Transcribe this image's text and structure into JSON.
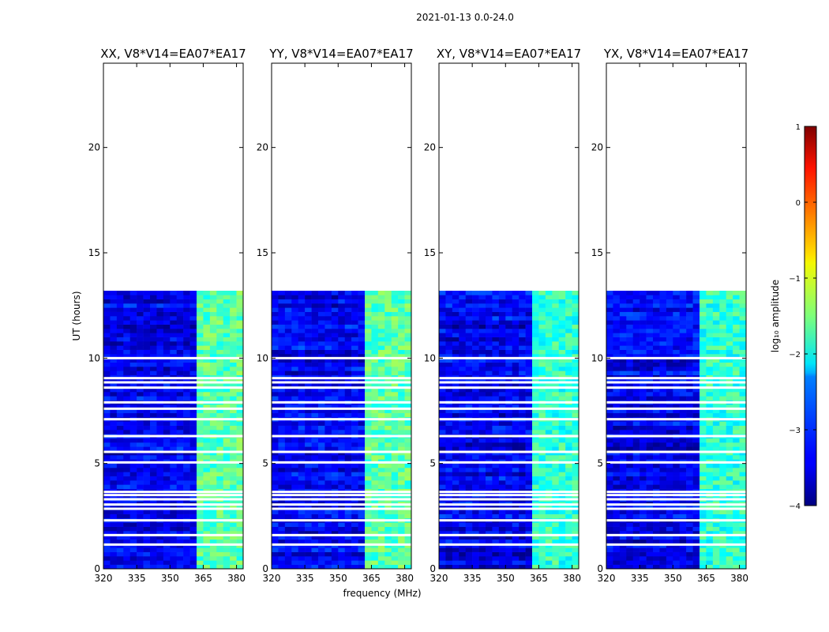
{
  "chart_data": {
    "type": "heatmap",
    "suptitle": "2021-01-13 0.0-24.0",
    "xlabel": "frequency (MHz)",
    "ylabel": "UT (hours)",
    "xlim": [
      320,
      383
    ],
    "ylim": [
      0,
      24
    ],
    "xticks": [
      320,
      335,
      350,
      365,
      380
    ],
    "yticks": [
      0,
      5,
      10,
      15,
      20
    ],
    "data_ut_range": [
      0,
      13.2
    ],
    "panels": [
      {
        "title": "XX, V8*V14=EA07*EA17",
        "bright_channels_mhz": [
          [
            363,
            368
          ],
          [
            368.5,
            373
          ],
          [
            373.5,
            378
          ],
          [
            378.5,
            383
          ]
        ]
      },
      {
        "title": "YY, V8*V14=EA07*EA17",
        "bright_channels_mhz": [
          [
            363,
            368
          ],
          [
            368.5,
            373
          ],
          [
            373.5,
            378
          ],
          [
            378.5,
            383
          ]
        ]
      },
      {
        "title": "XY, V8*V14=EA07*EA17",
        "bright_channels_mhz": [
          [
            363,
            368
          ],
          [
            368.5,
            373
          ],
          [
            373.5,
            378
          ],
          [
            378.5,
            383
          ]
        ]
      },
      {
        "title": "YX, V8*V14=EA07*EA17",
        "bright_channels_mhz": [
          [
            363,
            368
          ],
          [
            368.5,
            373
          ],
          [
            373.5,
            378
          ],
          [
            378.5,
            383
          ]
        ]
      }
    ],
    "flagged_ut_hours": [
      1.15,
      1.6,
      2.3,
      2.85,
      3.05,
      3.3,
      3.5,
      3.65,
      5.05,
      5.55,
      6.3,
      7.1,
      7.6,
      7.9,
      8.6,
      8.85,
      9.05,
      10.0
    ],
    "colorbar": {
      "label": "log₁₀ amplitude",
      "range": [
        -4,
        1
      ],
      "ticks": [
        1,
        0,
        -1,
        -2,
        -3,
        -4
      ],
      "tick_labels": [
        "1",
        "0",
        "−1",
        "−2",
        "−3",
        "−4"
      ],
      "colormap": "jet"
    }
  }
}
